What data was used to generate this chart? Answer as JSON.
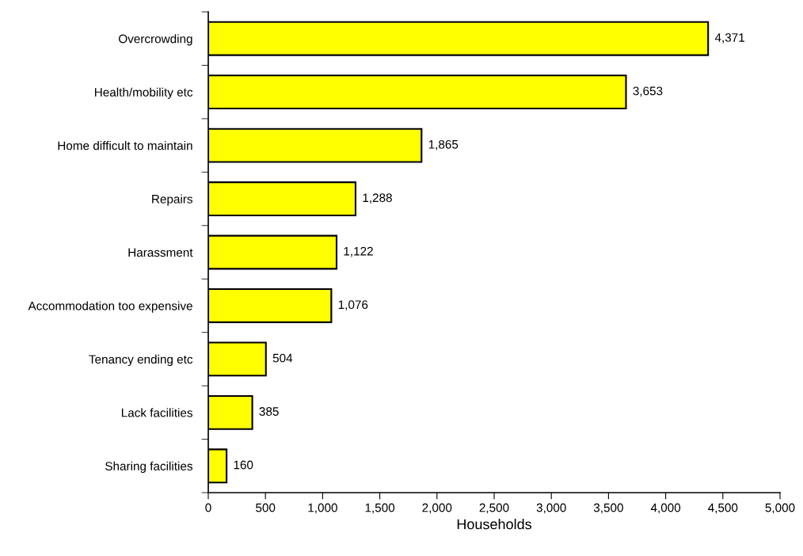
{
  "chart_data": {
    "type": "bar",
    "orientation": "horizontal",
    "xlabel": "Households",
    "categories": [
      "Overcrowding",
      "Health/mobility etc",
      "Home difficult to maintain",
      "Repairs",
      "Harassment",
      "Accommodation too expensive",
      "Tenancy ending etc",
      "Lack facilities",
      "Sharing facilities"
    ],
    "values": [
      4371,
      3653,
      1865,
      1288,
      1122,
      1076,
      504,
      385,
      160
    ],
    "value_labels": [
      "4,371",
      "3,653",
      "1,865",
      "1,288",
      "1,122",
      "1,076",
      "504",
      "385",
      "160"
    ],
    "color": "#ffff00",
    "xlim": [
      0,
      5000
    ],
    "xticks": [
      0,
      500,
      {
        "value": 1000,
        "label": "1,000"
      },
      {
        "value": 1500,
        "label": "1,500"
      },
      {
        "value": 2000,
        "label": "2,000"
      },
      {
        "value": 2500,
        "label": "2,500"
      },
      {
        "value": 3000,
        "label": "3,000"
      },
      {
        "value": 3500,
        "label": "3,500"
      },
      {
        "value": 4000,
        "label": "4,000"
      },
      {
        "value": 4500,
        "label": "4,500"
      },
      {
        "value": 5000,
        "label": "5,000"
      }
    ],
    "grid": false
  }
}
